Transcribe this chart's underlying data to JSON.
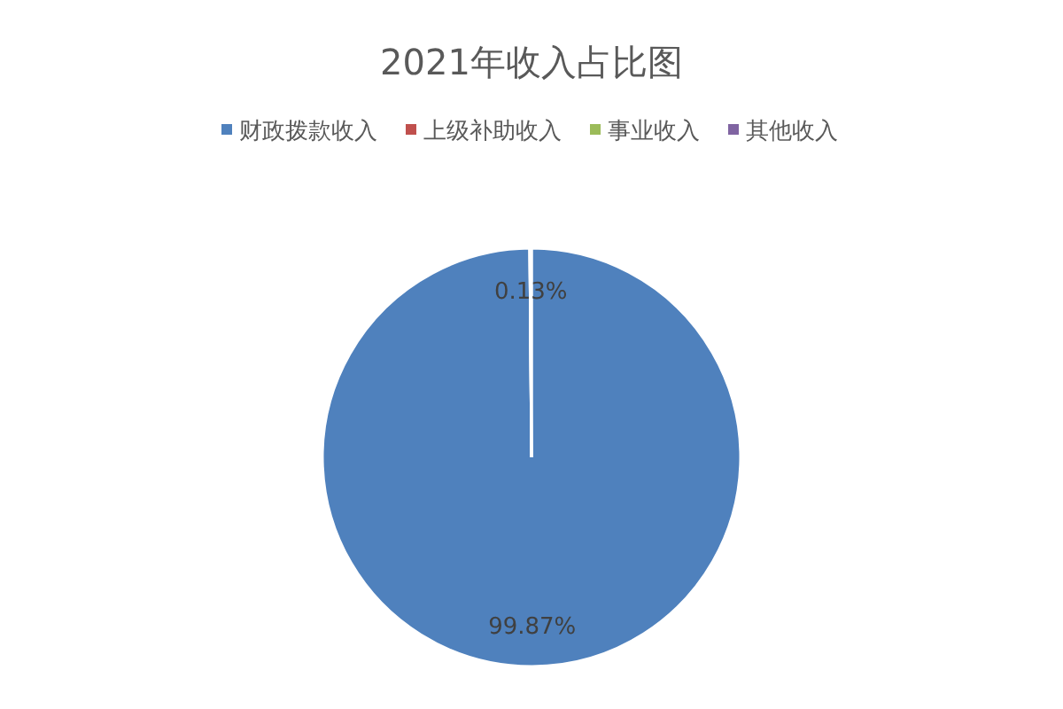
{
  "chart_data": {
    "type": "pie",
    "title": "2021年收入占比图",
    "categories": [
      "财政拨款收入",
      "上级补助收入",
      "事业收入",
      "其他收入"
    ],
    "values": [
      99.87,
      0,
      0,
      0.13
    ],
    "colors": [
      "#4f81bd",
      "#c0504d",
      "#9bbb59",
      "#8064a2"
    ],
    "value_labels": [
      "99.87%",
      null,
      null,
      "0.13%"
    ],
    "legend": "top"
  }
}
